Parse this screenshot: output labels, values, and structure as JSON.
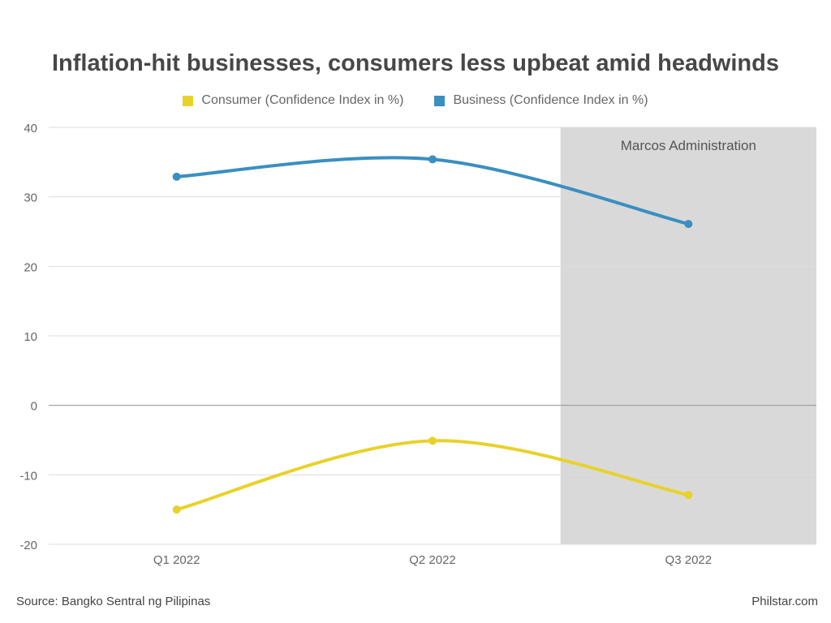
{
  "chart_data": {
    "type": "line",
    "title": "Inflation-hit businesses, consumers less upbeat amid headwinds",
    "categories": [
      "Q1 2022",
      "Q2 2022",
      "Q3 2022"
    ],
    "series": [
      {
        "name": "Consumer (Confidence Index in %)",
        "values": [
          -15.0,
          -5.1,
          -12.9
        ],
        "color": "#e8d22a"
      },
      {
        "name": "Business (Confidence Index in %)",
        "values": [
          32.9,
          35.4,
          26.1
        ],
        "color": "#3a8fc0"
      }
    ],
    "ylim": [
      -20,
      40
    ],
    "yticks": [
      -20,
      -10,
      0,
      10,
      20,
      30,
      40
    ],
    "ytick_labels": [
      "-20",
      "-10",
      "0",
      "10",
      "20",
      "30",
      "40"
    ],
    "grid": true,
    "legend_position": "top-center",
    "shaded_region": {
      "label": "Marcos Administration",
      "from_category": "Q3 2022",
      "color": "#d9d9d9"
    }
  },
  "footer": {
    "source": "Source: Bangko Sentral ng Pilipinas",
    "credit": "Philstar.com"
  }
}
